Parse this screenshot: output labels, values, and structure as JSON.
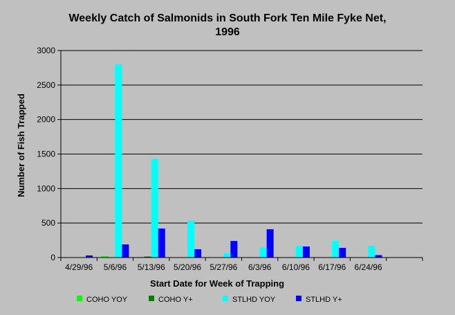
{
  "chart_data": {
    "type": "bar",
    "title": "Weekly Catch of Salmonids in South Fork Ten Mile Fyke Net,",
    "subtitle": "1996",
    "xlabel": "Start Date for Week of Trapping",
    "ylabel": "Number of Fish Trapped",
    "ylim": [
      0,
      3000
    ],
    "yticks": [
      "0",
      "500",
      "1000",
      "1500",
      "2000",
      "2500",
      "3000"
    ],
    "categories": [
      "4/29/96",
      "5/6/96",
      "5/13/96",
      "5/20/96",
      "5/27/96",
      "6/3/96",
      "6/10/96",
      "6/17/96",
      "6/24/96"
    ],
    "grid": true,
    "legend_position": "bottom",
    "series": [
      {
        "name": "COHO YOY",
        "color": "#00ff00",
        "values": [
          5,
          20,
          8,
          5,
          0,
          5,
          5,
          5,
          5
        ]
      },
      {
        "name": "COHO Y+",
        "color": "#008000",
        "values": [
          3,
          5,
          15,
          5,
          0,
          5,
          0,
          0,
          0
        ]
      },
      {
        "name": "STLHD YOY",
        "color": "#00ffff",
        "values": [
          5,
          2800,
          1430,
          530,
          60,
          145,
          170,
          240,
          170
        ]
      },
      {
        "name": "STLHD Y+",
        "color": "#0000ff",
        "values": [
          30,
          190,
          420,
          120,
          240,
          410,
          160,
          140,
          35
        ]
      }
    ]
  }
}
